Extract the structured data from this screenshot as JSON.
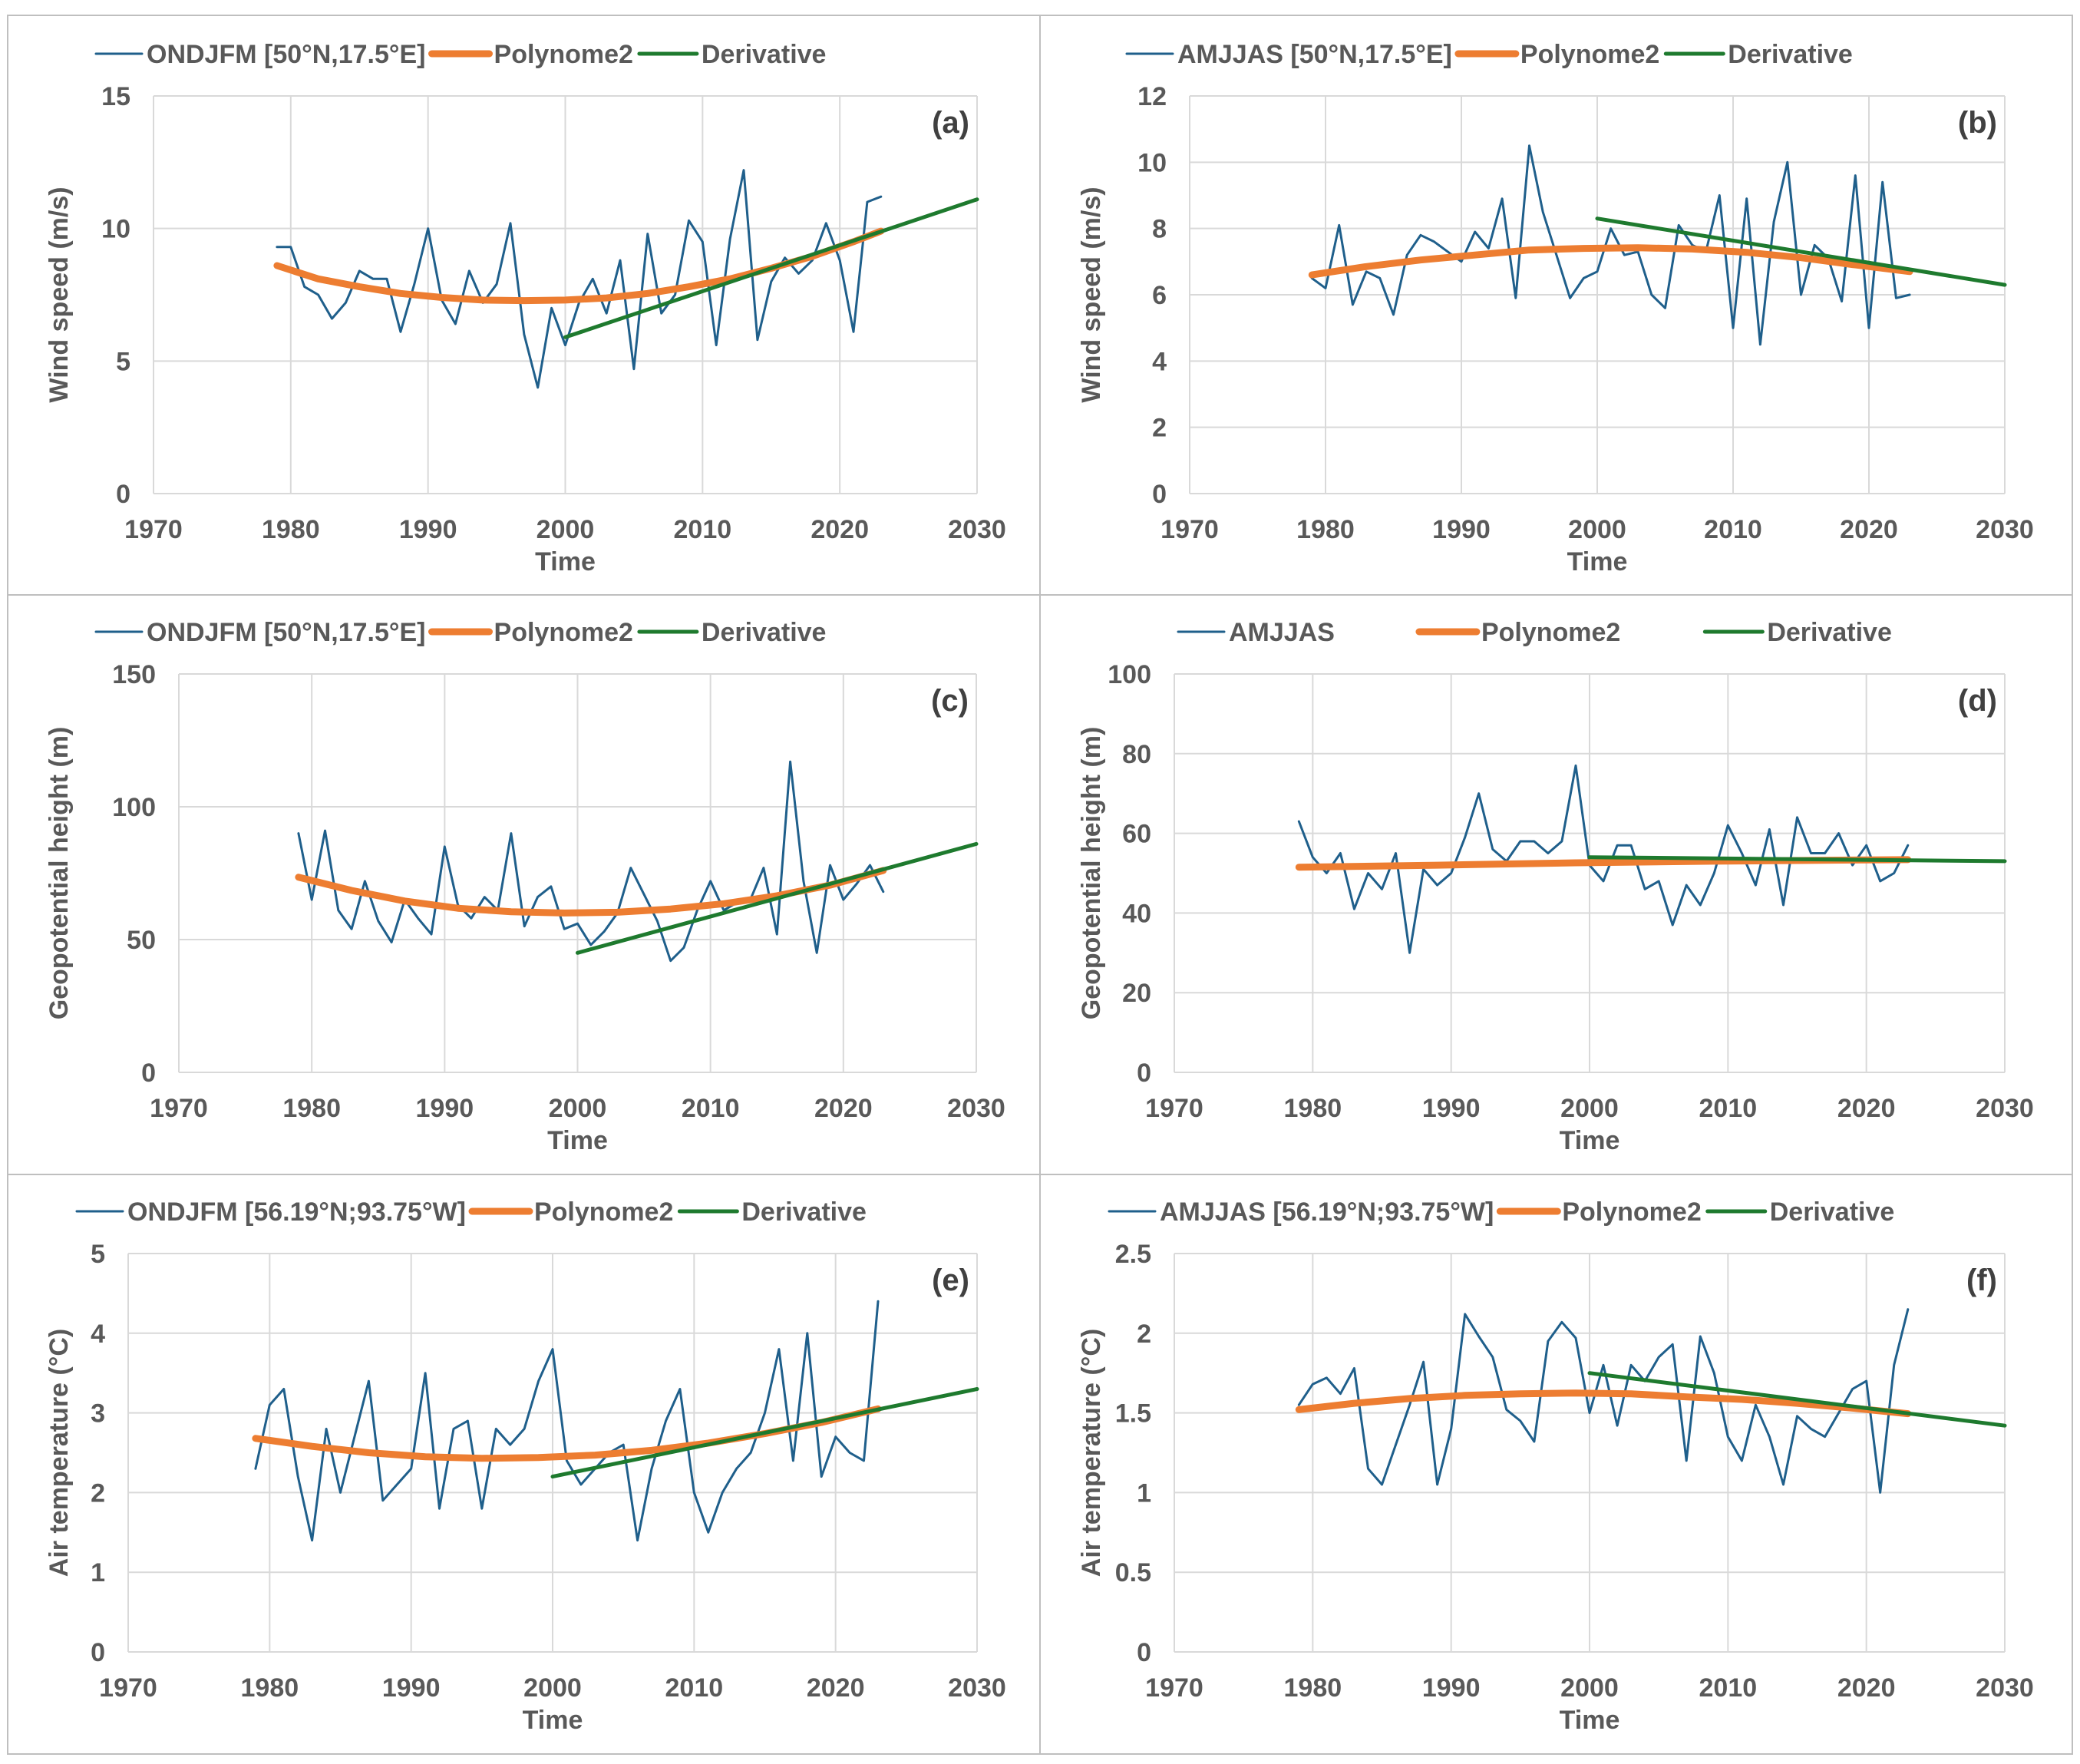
{
  "figure": {
    "colors": {
      "observed": "#1f5f8b",
      "polynomial": "#ed7d31",
      "derivative": "#1e7a2e",
      "grid": "#d9d9d9",
      "axis_text": "#595959",
      "border": "#bfbfbf"
    }
  },
  "chart_data": [
    {
      "id": "a",
      "type": "line",
      "panel_label": "(a)",
      "xlabel": "Time",
      "ylabel": "Wind speed (m/s)",
      "xlim": [
        1970,
        2030
      ],
      "ylim": [
        0,
        15
      ],
      "xticks": [
        1970,
        1980,
        1990,
        2000,
        2010,
        2020,
        2030
      ],
      "yticks": [
        0,
        5,
        10,
        15
      ],
      "ytick_labels": [
        "0",
        "5",
        "10",
        "15"
      ],
      "legend_style": "compact",
      "series": [
        {
          "name": "ONDJFM [50°N,17.5°E]",
          "kind": "observed",
          "x": [
            1979,
            1980,
            1981,
            1982,
            1983,
            1984,
            1985,
            1986,
            1987,
            1988,
            1989,
            1990,
            1991,
            1992,
            1993,
            1994,
            1995,
            1996,
            1997,
            1998,
            1999,
            2000,
            2001,
            2002,
            2003,
            2004,
            2005,
            2006,
            2007,
            2008,
            2009,
            2010,
            2011,
            2012,
            2013,
            2014,
            2015,
            2016,
            2017,
            2018,
            2019,
            2020,
            2021,
            2022,
            2023
          ],
          "values": [
            9.3,
            9.3,
            7.8,
            7.5,
            6.6,
            7.2,
            8.4,
            8.1,
            8.1,
            6.1,
            7.9,
            10.0,
            7.3,
            6.4,
            8.4,
            7.2,
            7.9,
            10.2,
            6.0,
            4.0,
            7.0,
            5.6,
            7.2,
            8.1,
            6.8,
            8.8,
            4.7,
            9.8,
            6.8,
            7.5,
            10.3,
            9.5,
            5.6,
            9.6,
            12.2,
            5.8,
            8.0,
            8.9,
            8.3,
            8.8,
            10.2,
            8.8,
            6.1,
            11.0,
            11.2
          ]
        },
        {
          "name": "Polynome2",
          "kind": "polynomial",
          "x": [
            1979,
            1982,
            1985,
            1988,
            1991,
            1994,
            1997,
            2000,
            2003,
            2006,
            2009,
            2012,
            2015,
            2018,
            2021,
            2023
          ],
          "values": [
            8.6,
            8.1,
            7.8,
            7.55,
            7.4,
            7.3,
            7.28,
            7.3,
            7.38,
            7.55,
            7.8,
            8.1,
            8.5,
            8.95,
            9.5,
            9.9
          ]
        },
        {
          "name": "Derivative",
          "kind": "derivative",
          "x": [
            2000,
            2030
          ],
          "values": [
            5.9,
            11.1
          ]
        }
      ]
    },
    {
      "id": "b",
      "type": "line",
      "panel_label": "(b)",
      "xlabel": "Time",
      "ylabel": "Wind speed (m/s)",
      "xlim": [
        1970,
        2030
      ],
      "ylim": [
        0,
        12
      ],
      "xticks": [
        1970,
        1980,
        1990,
        2000,
        2010,
        2020,
        2030
      ],
      "yticks": [
        0,
        2,
        4,
        6,
        8,
        10,
        12
      ],
      "ytick_labels": [
        "0",
        "2",
        "4",
        "6",
        "8",
        "10",
        "12"
      ],
      "legend_style": "compact",
      "series": [
        {
          "name": "AMJJAS [50°N,17.5°E]",
          "kind": "observed",
          "x": [
            1979,
            1980,
            1981,
            1982,
            1983,
            1984,
            1985,
            1986,
            1987,
            1988,
            1989,
            1990,
            1991,
            1992,
            1993,
            1994,
            1995,
            1996,
            1997,
            1998,
            1999,
            2000,
            2001,
            2002,
            2003,
            2004,
            2005,
            2006,
            2007,
            2008,
            2009,
            2010,
            2011,
            2012,
            2013,
            2014,
            2015,
            2016,
            2017,
            2018,
            2019,
            2020,
            2021,
            2022,
            2023
          ],
          "values": [
            6.5,
            6.2,
            8.1,
            5.7,
            6.7,
            6.5,
            5.4,
            7.2,
            7.8,
            7.6,
            7.3,
            7.0,
            7.9,
            7.4,
            8.9,
            5.9,
            10.5,
            8.5,
            7.2,
            5.9,
            6.5,
            6.7,
            8.0,
            7.2,
            7.3,
            6.0,
            5.6,
            8.1,
            7.5,
            7.3,
            9.0,
            5.0,
            8.9,
            4.5,
            8.2,
            10.0,
            6.0,
            7.5,
            7.1,
            5.8,
            9.6,
            5.0,
            9.4,
            5.9,
            6.0
          ]
        },
        {
          "name": "Polynome2",
          "kind": "polynomial",
          "x": [
            1979,
            1983,
            1987,
            1991,
            1995,
            1999,
            2003,
            2007,
            2011,
            2015,
            2019,
            2023
          ],
          "values": [
            6.6,
            6.85,
            7.05,
            7.2,
            7.35,
            7.4,
            7.42,
            7.38,
            7.28,
            7.12,
            6.9,
            6.7
          ]
        },
        {
          "name": "Derivative",
          "kind": "derivative",
          "x": [
            2000,
            2030
          ],
          "values": [
            8.3,
            6.3
          ]
        }
      ]
    },
    {
      "id": "c",
      "type": "line",
      "panel_label": "(c)",
      "xlabel": "Time",
      "ylabel": "Geopotential height (m)",
      "xlim": [
        1970,
        2030
      ],
      "ylim": [
        0,
        150
      ],
      "xticks": [
        1970,
        1980,
        1990,
        2000,
        2010,
        2020,
        2030
      ],
      "yticks": [
        0,
        50,
        100,
        150
      ],
      "ytick_labels": [
        "0",
        "50",
        "100",
        "150"
      ],
      "legend_style": "compact",
      "series": [
        {
          "name": "ONDJFM [50°N,17.5°E]",
          "kind": "observed",
          "x": [
            1979,
            1980,
            1981,
            1982,
            1983,
            1984,
            1985,
            1986,
            1987,
            1988,
            1989,
            1990,
            1991,
            1992,
            1993,
            1994,
            1995,
            1996,
            1997,
            1998,
            1999,
            2000,
            2001,
            2002,
            2003,
            2004,
            2005,
            2006,
            2007,
            2008,
            2009,
            2010,
            2011,
            2012,
            2013,
            2014,
            2015,
            2016,
            2017,
            2018,
            2019,
            2020,
            2021,
            2022,
            2023
          ],
          "values": [
            90,
            65,
            91,
            61,
            54,
            72,
            57,
            49,
            65,
            58,
            52,
            85,
            63,
            58,
            66,
            61,
            90,
            55,
            66,
            70,
            54,
            56,
            48,
            53,
            60,
            77,
            67,
            57,
            42,
            47,
            61,
            72,
            61,
            64,
            65,
            77,
            52,
            117,
            72,
            45,
            78,
            65,
            71,
            78,
            68
          ]
        },
        {
          "name": "Polynome2",
          "kind": "polynomial",
          "x": [
            1979,
            1983,
            1987,
            1991,
            1995,
            1999,
            2003,
            2007,
            2011,
            2015,
            2019,
            2023
          ],
          "values": [
            73.5,
            68.5,
            64.5,
            61.8,
            60.5,
            60.0,
            60.3,
            61.5,
            63.5,
            66.5,
            70.5,
            76.0
          ]
        },
        {
          "name": "Derivative",
          "kind": "derivative",
          "x": [
            2000,
            2030
          ],
          "values": [
            45,
            86
          ]
        }
      ]
    },
    {
      "id": "d",
      "type": "line",
      "panel_label": "(d)",
      "xlabel": "Time",
      "ylabel": "Geopotential height (m)",
      "xlim": [
        1970,
        2030
      ],
      "ylim": [
        0,
        100
      ],
      "xticks": [
        1970,
        1980,
        1990,
        2000,
        2010,
        2020,
        2030
      ],
      "yticks": [
        0,
        20,
        40,
        60,
        80,
        100
      ],
      "ytick_labels": [
        "0",
        "20",
        "40",
        "60",
        "80",
        "100"
      ],
      "legend_style": "spread",
      "series": [
        {
          "name": "AMJJAS",
          "kind": "observed",
          "x": [
            1979,
            1980,
            1981,
            1982,
            1983,
            1984,
            1985,
            1986,
            1987,
            1988,
            1989,
            1990,
            1991,
            1992,
            1993,
            1994,
            1995,
            1996,
            1997,
            1998,
            1999,
            2000,
            2001,
            2002,
            2003,
            2004,
            2005,
            2006,
            2007,
            2008,
            2009,
            2010,
            2011,
            2012,
            2013,
            2014,
            2015,
            2016,
            2017,
            2018,
            2019,
            2020,
            2021,
            2022,
            2023
          ],
          "values": [
            63,
            54,
            50,
            55,
            41,
            50,
            46,
            55,
            30,
            51,
            47,
            50,
            59,
            70,
            56,
            53,
            58,
            58,
            55,
            58,
            77,
            52,
            48,
            57,
            57,
            46,
            48,
            37,
            47,
            42,
            50,
            62,
            55,
            47,
            61,
            42,
            64,
            55,
            55,
            60,
            52,
            57,
            48,
            50,
            57
          ]
        },
        {
          "name": "Polynome2",
          "kind": "polynomial",
          "x": [
            1979,
            1989,
            1999,
            2009,
            2019,
            2023
          ],
          "values": [
            51.5,
            52.0,
            52.6,
            53.0,
            53.3,
            53.4
          ]
        },
        {
          "name": "Derivative",
          "kind": "derivative",
          "x": [
            2000,
            2030
          ],
          "values": [
            54,
            53
          ]
        }
      ]
    },
    {
      "id": "e",
      "type": "line",
      "panel_label": "(e)",
      "xlabel": "Time",
      "ylabel": "Air temperature (°C)",
      "xlim": [
        1970,
        2030
      ],
      "ylim": [
        0,
        5
      ],
      "xticks": [
        1970,
        1980,
        1990,
        2000,
        2010,
        2020,
        2030
      ],
      "yticks": [
        0,
        1,
        2,
        3,
        4,
        5
      ],
      "ytick_labels": [
        "0",
        "1",
        "2",
        "3",
        "4",
        "5"
      ],
      "legend_style": "compact",
      "series": [
        {
          "name": "ONDJFM [56.19°N;93.75°W]",
          "kind": "observed",
          "x": [
            1979,
            1980,
            1981,
            1982,
            1983,
            1984,
            1985,
            1986,
            1987,
            1988,
            1989,
            1990,
            1991,
            1992,
            1993,
            1994,
            1995,
            1996,
            1997,
            1998,
            1999,
            2000,
            2001,
            2002,
            2003,
            2004,
            2005,
            2006,
            2007,
            2008,
            2009,
            2010,
            2011,
            2012,
            2013,
            2014,
            2015,
            2016,
            2017,
            2018,
            2019,
            2020,
            2021,
            2022,
            2023
          ],
          "values": [
            2.3,
            3.1,
            3.3,
            2.2,
            1.4,
            2.8,
            2.0,
            2.7,
            3.4,
            1.9,
            2.1,
            2.3,
            3.5,
            1.8,
            2.8,
            2.9,
            1.8,
            2.8,
            2.6,
            2.8,
            3.4,
            3.8,
            2.4,
            2.1,
            2.3,
            2.5,
            2.6,
            1.4,
            2.3,
            2.9,
            3.3,
            2.0,
            1.5,
            2.0,
            2.3,
            2.5,
            3.0,
            3.8,
            2.4,
            4.0,
            2.2,
            2.7,
            2.5,
            2.4,
            4.4
          ]
        },
        {
          "name": "Polynome2",
          "kind": "polynomial",
          "x": [
            1979,
            1983,
            1987,
            1991,
            1995,
            1999,
            2003,
            2007,
            2011,
            2015,
            2019,
            2023
          ],
          "values": [
            2.68,
            2.58,
            2.5,
            2.45,
            2.43,
            2.44,
            2.47,
            2.53,
            2.62,
            2.74,
            2.88,
            3.05
          ]
        },
        {
          "name": "Derivative",
          "kind": "derivative",
          "x": [
            2000,
            2030
          ],
          "values": [
            2.2,
            3.3
          ]
        }
      ]
    },
    {
      "id": "f",
      "type": "line",
      "panel_label": "(f)",
      "xlabel": "Time",
      "ylabel": "Air temperature (°C)",
      "xlim": [
        1970,
        2030
      ],
      "ylim": [
        0,
        2.5
      ],
      "xticks": [
        1970,
        1980,
        1990,
        2000,
        2010,
        2020,
        2030
      ],
      "yticks": [
        0,
        0.5,
        1,
        1.5,
        2,
        2.5
      ],
      "ytick_labels": [
        "0",
        "0.5",
        "1",
        "1.5",
        "2",
        "2.5"
      ],
      "legend_style": "compact",
      "series": [
        {
          "name": "AMJJAS [56.19°N;93.75°W]",
          "kind": "observed",
          "x": [
            1979,
            1980,
            1981,
            1982,
            1983,
            1984,
            1985,
            1986,
            1987,
            1988,
            1989,
            1990,
            1991,
            1992,
            1993,
            1994,
            1995,
            1996,
            1997,
            1998,
            1999,
            2000,
            2001,
            2002,
            2003,
            2004,
            2005,
            2006,
            2007,
            2008,
            2009,
            2010,
            2011,
            2012,
            2013,
            2014,
            2015,
            2016,
            2017,
            2018,
            2019,
            2020,
            2021,
            2022,
            2023
          ],
          "values": [
            1.55,
            1.68,
            1.72,
            1.62,
            1.78,
            1.15,
            1.05,
            1.3,
            1.55,
            1.82,
            1.05,
            1.4,
            2.12,
            1.98,
            1.85,
            1.52,
            1.45,
            1.32,
            1.95,
            2.07,
            1.97,
            1.5,
            1.8,
            1.42,
            1.8,
            1.7,
            1.85,
            1.93,
            1.2,
            1.98,
            1.75,
            1.35,
            1.2,
            1.55,
            1.35,
            1.05,
            1.48,
            1.4,
            1.35,
            1.5,
            1.65,
            1.7,
            1.0,
            1.8,
            2.15
          ]
        },
        {
          "name": "Polynome2",
          "kind": "polynomial",
          "x": [
            1979,
            1983,
            1987,
            1991,
            1995,
            1999,
            2003,
            2007,
            2011,
            2015,
            2019,
            2023
          ],
          "values": [
            1.52,
            1.56,
            1.59,
            1.61,
            1.62,
            1.625,
            1.62,
            1.6,
            1.585,
            1.56,
            1.53,
            1.495
          ]
        },
        {
          "name": "Derivative",
          "kind": "derivative",
          "x": [
            2000,
            2030
          ],
          "values": [
            1.75,
            1.42
          ]
        }
      ]
    }
  ]
}
